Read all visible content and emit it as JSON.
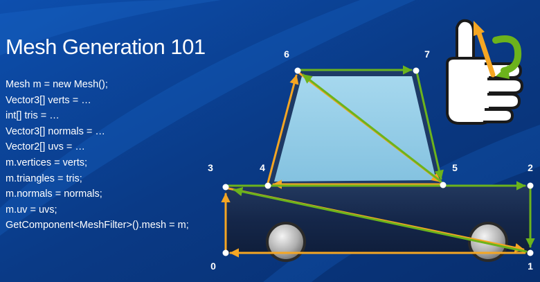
{
  "slide": {
    "title": "Mesh Generation 101",
    "code_lines": [
      "Mesh m = new Mesh();",
      "Vector3[] verts = …",
      "int[] tris = …",
      "Vector3[] normals = …",
      "Vector2[] uvs = …",
      "m.vertices = verts;",
      "m.triangles = tris;",
      "m.normals = normals;",
      "m.uv = uvs;",
      "GetComponent<MeshFilter>().mesh = m;"
    ]
  },
  "vertices": [
    {
      "label": "0"
    },
    {
      "label": "1"
    },
    {
      "label": "2"
    },
    {
      "label": "3"
    },
    {
      "label": "4"
    },
    {
      "label": "5"
    },
    {
      "label": "6"
    },
    {
      "label": "7"
    }
  ],
  "icon": "thumbs-up-left-hand-rule-icon",
  "colors": {
    "background": "#0a3a86",
    "car_body": "#15274a",
    "window": "#8fcbe6",
    "orange_edge": "#f5a623",
    "green_edge": "#6cb31c",
    "text": "#ffffff"
  }
}
